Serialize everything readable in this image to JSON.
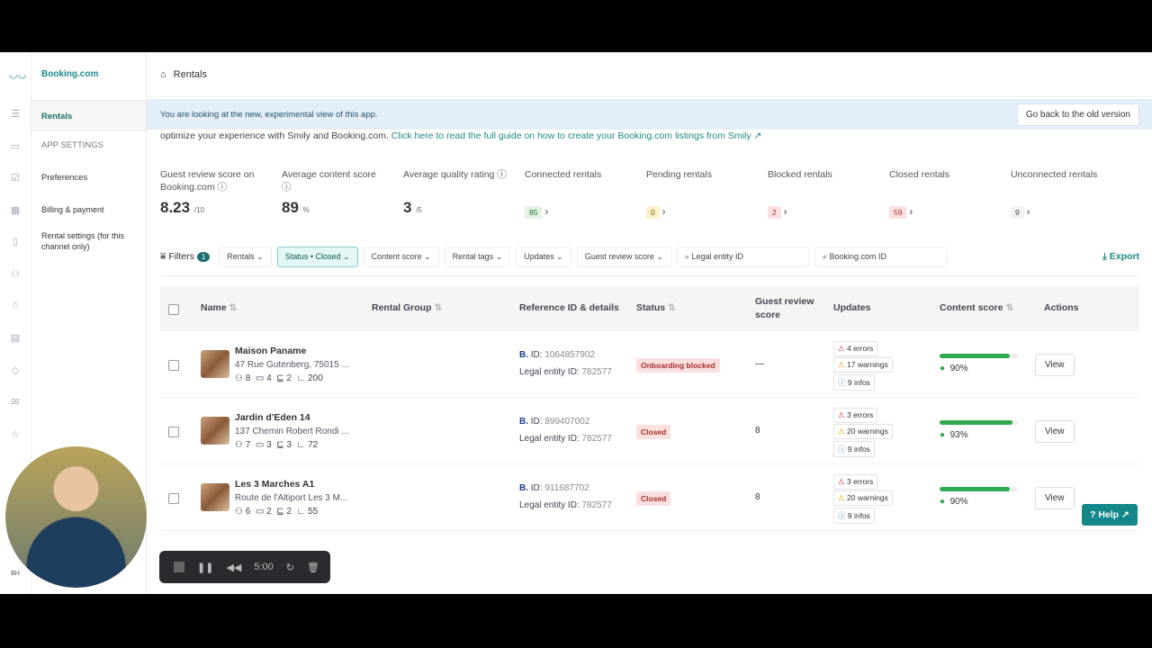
{
  "app": {
    "brand": "Booking.com",
    "initials": "BH"
  },
  "sidebar": {
    "items": [
      {
        "label": "Rentals"
      },
      {
        "label": "APP SETTINGS"
      },
      {
        "label": "Preferences"
      },
      {
        "label": "Billing & payment"
      },
      {
        "label": "Rental settings (for this channel only)"
      }
    ]
  },
  "header": {
    "title": "Rentals"
  },
  "banner": {
    "text": "You are looking at the new, experimental view of this app.",
    "button": "Go back to the old version"
  },
  "intro": {
    "text": "optimize your experience with Smily and Booking.com.",
    "link": "Click here to read the full guide on how to create your Booking.com listings from Smily"
  },
  "stats": [
    {
      "label": "Guest review score on Booking.com",
      "value": "8.23",
      "unit": "/10"
    },
    {
      "label": "Average content score",
      "value": "89",
      "unit": "%"
    },
    {
      "label": "Average quality rating",
      "value": "3",
      "unit": "/5"
    },
    {
      "label": "Connected rentals",
      "count": "85",
      "color": "#e3f4e5"
    },
    {
      "label": "Pending rentals",
      "count": "0",
      "color": "#fbf1cf"
    },
    {
      "label": "Blocked rentals",
      "count": "2",
      "color": "#fbe0df"
    },
    {
      "label": "Closed rentals",
      "count": "59",
      "color": "#fbe0df"
    },
    {
      "label": "Unconnected rentals",
      "count": "9",
      "color": "#f1f3f5"
    }
  ],
  "filters": {
    "label": "Filters",
    "count": "1",
    "buttons": [
      "Rentals",
      "Status • Closed",
      "Content score",
      "Rental tags",
      "Updates",
      "Guest review score"
    ],
    "search1": "Legal entity ID",
    "search2": "Booking.com ID",
    "export": "Export"
  },
  "table": {
    "headers": {
      "name": "Name",
      "group": "Rental Group",
      "ref": "Reference ID & details",
      "status": "Status",
      "review": "Guest review score",
      "updates": "Updates",
      "content": "Content score",
      "actions": "Actions"
    },
    "rows": [
      {
        "name": "Maison Paname",
        "address": "47 Rue Gutenberg, 75015 ...",
        "guests": "8",
        "beds": "4",
        "baths": "2",
        "area": "200",
        "bid": "1064857902",
        "legal": "782577",
        "status": "Onboarding blocked",
        "review": "—",
        "errors": "4 errors",
        "warnings": "17 warnings",
        "infos": "9 infos",
        "score": "90%",
        "score_value": 90,
        "action": "View"
      },
      {
        "name": "Jardin d'Eden 14",
        "address": "137 Chemin Robert Rondi ...",
        "guests": "7",
        "beds": "3",
        "baths": "3",
        "area": "72",
        "bid": "899407002",
        "legal": "782577",
        "status": "Closed",
        "review": "8",
        "errors": "3 errors",
        "warnings": "20 warnings",
        "infos": "9 infos",
        "score": "93%",
        "score_value": 93,
        "action": "View"
      },
      {
        "name": "Les 3 Marches A1",
        "address": "Route de l'Altiport Les 3 M...",
        "guests": "6",
        "beds": "2",
        "baths": "2",
        "area": "55",
        "bid": "911687702",
        "legal": "782577",
        "status": "Closed",
        "review": "8",
        "errors": "3 errors",
        "warnings": "20 warnings",
        "infos": "9 infos",
        "score": "90%",
        "score_value": 90,
        "action": "View"
      }
    ],
    "b_label": "B.",
    "id_label": "ID:",
    "legal_label": "Legal entity ID:"
  },
  "help": "Help",
  "recorder": {
    "time": "5:00"
  }
}
